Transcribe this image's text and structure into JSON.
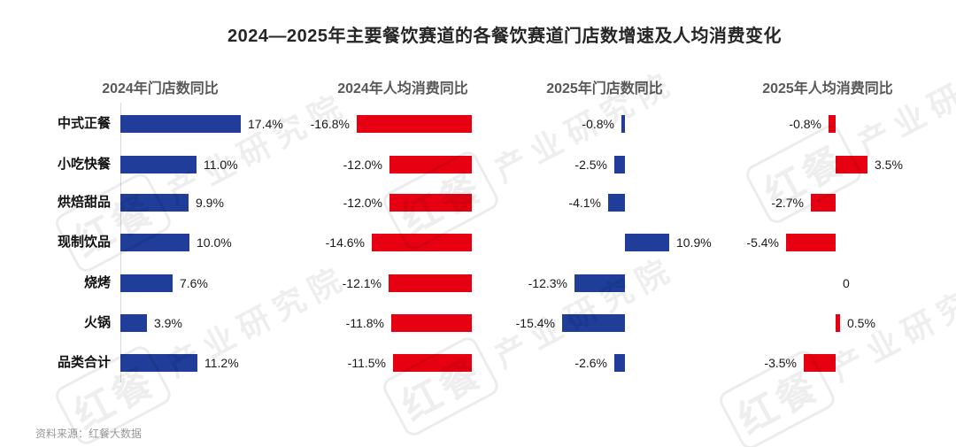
{
  "title": "2024—2025年主要餐饮赛道的各餐饮赛道门店数增速及人均消费变化",
  "source": "资料来源：红餐大数据",
  "watermark": {
    "brand": "红餐",
    "org": "产业研究院"
  },
  "chart_data": {
    "type": "bar",
    "orientation": "horizontal",
    "title": "2024—2025年主要餐饮赛道的各餐饮赛道门店数增速及人均消费变化",
    "categories": [
      "中式正餐",
      "小吃快餐",
      "烘焙甜品",
      "现制饮品",
      "烧烤",
      "火锅",
      "品类合计"
    ],
    "unit": "%",
    "series": [
      {
        "name": "2024年门店数同比",
        "color": "#1f3d99",
        "values": [
          17.4,
          11.0,
          9.9,
          10.0,
          7.6,
          3.9,
          11.2
        ],
        "labels": [
          "17.4%",
          "11.0%",
          "9.9%",
          "10.0%",
          "7.6%",
          "3.9%",
          "11.2%"
        ]
      },
      {
        "name": "2024年人均消费同比",
        "color": "#e60012",
        "values": [
          -16.8,
          -12.0,
          -12.0,
          -14.6,
          -12.1,
          -11.8,
          -11.5
        ],
        "labels": [
          "-16.8%",
          "-12.0%",
          "-12.0%",
          "-14.6%",
          "-12.1%",
          "-11.8%",
          "-11.5%"
        ]
      },
      {
        "name": "2025年门店数同比",
        "color": "#1f3d99",
        "values": [
          -0.8,
          -2.5,
          -4.1,
          10.9,
          -12.3,
          -15.4,
          -2.6
        ],
        "labels": [
          "-0.8%",
          "-2.5%",
          "-4.1%",
          "10.9%",
          "-12.3%",
          "-15.4%",
          "-2.6%"
        ]
      },
      {
        "name": "2025年人均消费同比",
        "color": "#e60012",
        "values": [
          -0.8,
          3.5,
          -2.7,
          -5.4,
          0,
          0.5,
          -3.5
        ],
        "labels": [
          "-0.8%",
          "3.5%",
          "-2.7%",
          "-5.4%",
          "0",
          "0.5%",
          "-3.5%"
        ]
      }
    ],
    "legend": false,
    "grid": false,
    "value_labels_visible": true
  }
}
